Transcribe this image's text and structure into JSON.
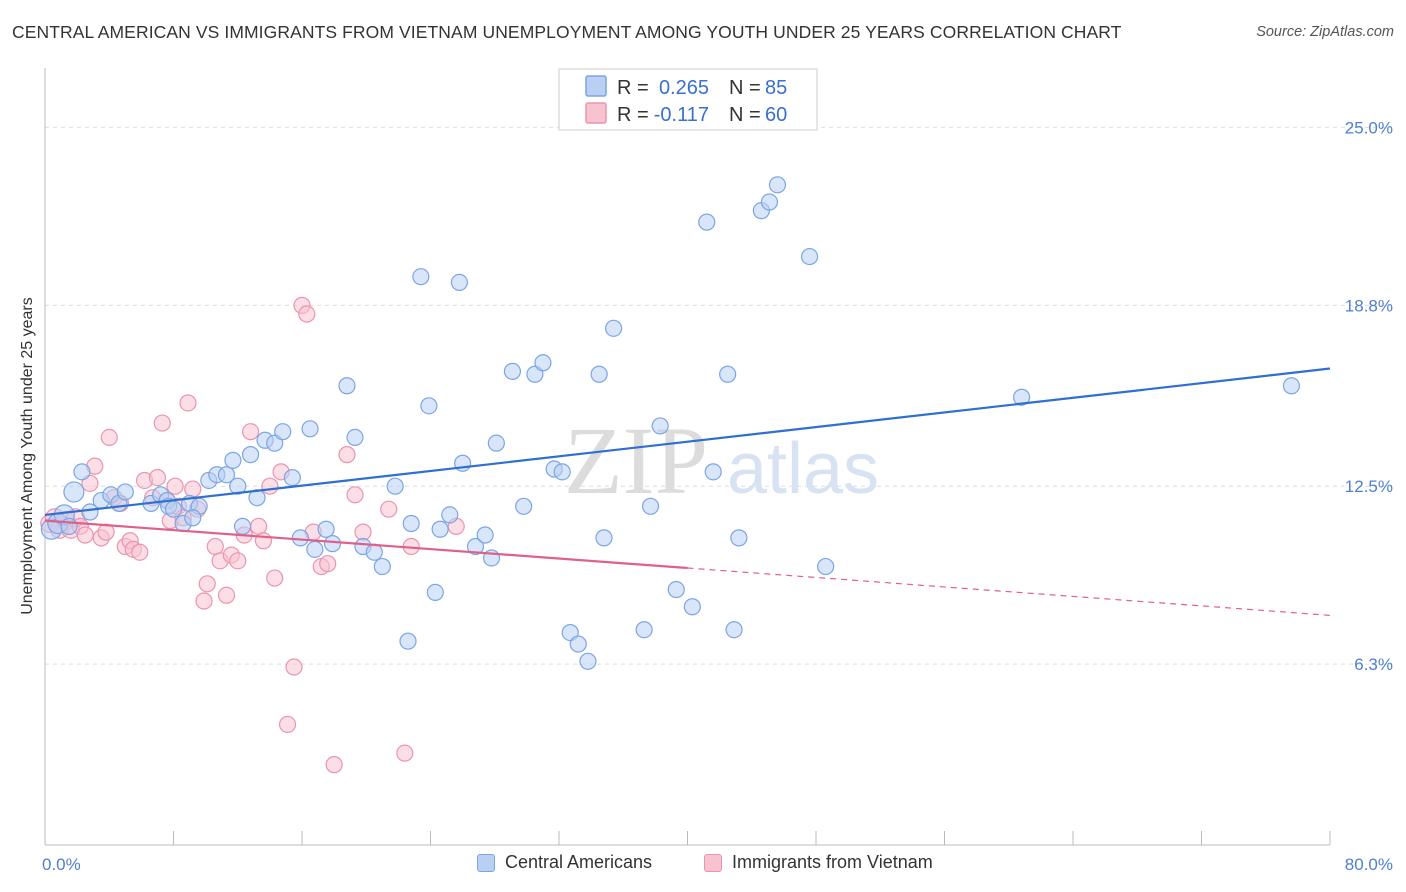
{
  "header": {
    "title": "CENTRAL AMERICAN VS IMMIGRANTS FROM VIETNAM UNEMPLOYMENT AMONG YOUTH UNDER 25 YEARS CORRELATION CHART",
    "source": "Source: ZipAtlas.com"
  },
  "watermark": {
    "zip": "ZIP",
    "atlas": "atlas"
  },
  "colors": {
    "blue_fill": "#b9d0f2",
    "blue_stroke": "#7aa6e4",
    "blue_line": "#2e6fd0",
    "pink_fill": "#f7c3d1",
    "pink_stroke": "#ec94ad",
    "pink_line": "#e0608a",
    "value_text": "#3a6fd0",
    "grid": "#dddddd"
  },
  "legend": {
    "r_label": "R =",
    "n_label": "N =",
    "rows": [
      {
        "r": "0.265",
        "n": "85"
      },
      {
        "r": "-0.117",
        "n": "60"
      }
    ]
  },
  "chart_data": {
    "type": "scatter",
    "title": "CENTRAL AMERICAN VS IMMIGRANTS FROM VIETNAM UNEMPLOYMENT AMONG YOUTH UNDER 25 YEARS CORRELATION CHART",
    "xlabel": "",
    "ylabel": "Unemployment Among Youth under 25 years",
    "xlim": [
      0,
      80
    ],
    "ylim": [
      0,
      27
    ],
    "x_tick_labels": [
      "0.0%",
      "80.0%"
    ],
    "y_ticks": [
      6.3,
      12.5,
      18.8,
      25.0
    ],
    "y_tick_labels": [
      "6.3%",
      "12.5%",
      "18.8%",
      "25.0%"
    ],
    "grid": "horizontal-dashed",
    "legend_position": "top-center",
    "series": [
      {
        "name": "Central Americans",
        "r": 0.265,
        "n": 85,
        "trend": {
          "x": [
            0,
            80
          ],
          "y": [
            11.5,
            16.6
          ],
          "dashed_from": null
        },
        "points": [
          [
            0.4,
            11.0
          ],
          [
            0.8,
            11.2
          ],
          [
            1.2,
            11.5
          ],
          [
            1.8,
            12.3
          ],
          [
            2.3,
            13.0
          ],
          [
            2.8,
            11.6
          ],
          [
            3.5,
            12.0
          ],
          [
            4.1,
            12.2
          ],
          [
            4.6,
            11.9
          ],
          [
            5.0,
            12.3
          ],
          [
            6.6,
            11.9
          ],
          [
            7.2,
            12.2
          ],
          [
            7.6,
            12.0
          ],
          [
            7.7,
            11.8
          ],
          [
            8.0,
            11.7
          ],
          [
            8.6,
            11.2
          ],
          [
            9.0,
            11.9
          ],
          [
            9.6,
            11.8
          ],
          [
            10.2,
            12.7
          ],
          [
            10.7,
            12.9
          ],
          [
            11.3,
            12.9
          ],
          [
            11.7,
            13.4
          ],
          [
            12.0,
            12.5
          ],
          [
            12.3,
            11.1
          ],
          [
            12.8,
            13.6
          ],
          [
            13.2,
            12.1
          ],
          [
            13.7,
            14.1
          ],
          [
            14.3,
            14.0
          ],
          [
            14.8,
            14.4
          ],
          [
            15.4,
            12.8
          ],
          [
            15.9,
            10.7
          ],
          [
            16.5,
            14.5
          ],
          [
            16.8,
            10.3
          ],
          [
            17.5,
            11.0
          ],
          [
            17.9,
            10.5
          ],
          [
            18.8,
            16.0
          ],
          [
            19.3,
            14.2
          ],
          [
            19.8,
            10.4
          ],
          [
            20.5,
            10.2
          ],
          [
            21.0,
            9.7
          ],
          [
            21.8,
            12.5
          ],
          [
            22.6,
            7.1
          ],
          [
            22.8,
            11.2
          ],
          [
            23.4,
            19.8
          ],
          [
            23.9,
            15.3
          ],
          [
            24.3,
            8.8
          ],
          [
            24.6,
            11.0
          ],
          [
            25.2,
            11.5
          ],
          [
            25.8,
            19.6
          ],
          [
            26.0,
            13.3
          ],
          [
            26.8,
            10.4
          ],
          [
            27.4,
            10.8
          ],
          [
            27.8,
            10.0
          ],
          [
            28.1,
            14.0
          ],
          [
            29.1,
            16.5
          ],
          [
            29.8,
            11.8
          ],
          [
            30.5,
            16.4
          ],
          [
            31.0,
            16.8
          ],
          [
            31.7,
            13.1
          ],
          [
            32.2,
            13.0
          ],
          [
            32.7,
            7.4
          ],
          [
            33.2,
            7.0
          ],
          [
            33.8,
            6.4
          ],
          [
            34.5,
            16.4
          ],
          [
            34.8,
            10.7
          ],
          [
            35.4,
            18.0
          ],
          [
            37.3,
            7.5
          ],
          [
            37.7,
            11.8
          ],
          [
            38.3,
            14.6
          ],
          [
            39.3,
            8.9
          ],
          [
            40.3,
            8.3
          ],
          [
            41.2,
            21.7
          ],
          [
            41.6,
            13.0
          ],
          [
            42.5,
            16.4
          ],
          [
            42.9,
            7.5
          ],
          [
            43.2,
            10.7
          ],
          [
            44.6,
            22.1
          ],
          [
            45.1,
            22.4
          ],
          [
            45.6,
            23.0
          ],
          [
            47.6,
            20.5
          ],
          [
            48.6,
            9.7
          ],
          [
            60.8,
            15.6
          ],
          [
            77.6,
            16.0
          ],
          [
            1.5,
            11.1
          ],
          [
            9.2,
            11.4
          ]
        ]
      },
      {
        "name": "Immigrants from Vietnam",
        "r": -0.117,
        "n": 60,
        "trend": {
          "x": [
            0,
            80
          ],
          "y": [
            11.3,
            8.0
          ],
          "dashed_from": 40
        },
        "points": [
          [
            0.3,
            11.2
          ],
          [
            0.6,
            11.4
          ],
          [
            0.9,
            11.0
          ],
          [
            1.3,
            11.3
          ],
          [
            1.6,
            11.0
          ],
          [
            1.9,
            11.4
          ],
          [
            2.2,
            11.1
          ],
          [
            2.5,
            10.8
          ],
          [
            2.8,
            12.6
          ],
          [
            3.1,
            13.2
          ],
          [
            3.5,
            10.7
          ],
          [
            3.8,
            10.9
          ],
          [
            4.0,
            14.2
          ],
          [
            4.3,
            12.1
          ],
          [
            4.7,
            11.9
          ],
          [
            5.0,
            10.4
          ],
          [
            5.3,
            10.6
          ],
          [
            5.5,
            10.3
          ],
          [
            5.9,
            10.2
          ],
          [
            6.2,
            12.7
          ],
          [
            6.7,
            12.1
          ],
          [
            7.0,
            12.8
          ],
          [
            7.3,
            14.7
          ],
          [
            7.6,
            12.0
          ],
          [
            7.8,
            11.3
          ],
          [
            8.1,
            12.5
          ],
          [
            8.3,
            11.8
          ],
          [
            8.6,
            11.4
          ],
          [
            8.9,
            15.4
          ],
          [
            9.2,
            12.4
          ],
          [
            9.5,
            11.7
          ],
          [
            9.9,
            8.5
          ],
          [
            10.1,
            9.1
          ],
          [
            10.6,
            10.4
          ],
          [
            10.9,
            9.9
          ],
          [
            11.3,
            8.7
          ],
          [
            11.6,
            10.1
          ],
          [
            12.0,
            9.9
          ],
          [
            12.4,
            10.8
          ],
          [
            12.8,
            14.4
          ],
          [
            13.3,
            11.1
          ],
          [
            13.6,
            10.6
          ],
          [
            14.0,
            12.5
          ],
          [
            14.3,
            9.3
          ],
          [
            14.7,
            13.0
          ],
          [
            15.1,
            4.2
          ],
          [
            15.5,
            6.2
          ],
          [
            16.0,
            18.8
          ],
          [
            16.3,
            18.5
          ],
          [
            16.7,
            10.9
          ],
          [
            17.2,
            9.7
          ],
          [
            17.6,
            9.8
          ],
          [
            18.0,
            2.8
          ],
          [
            18.8,
            13.6
          ],
          [
            19.3,
            12.2
          ],
          [
            19.8,
            10.9
          ],
          [
            21.4,
            11.7
          ],
          [
            22.4,
            3.2
          ],
          [
            22.8,
            10.4
          ],
          [
            25.6,
            11.1
          ]
        ]
      }
    ]
  },
  "bottom_legend": {
    "items": [
      {
        "label": "Central Americans"
      },
      {
        "label": "Immigrants from Vietnam"
      }
    ]
  }
}
